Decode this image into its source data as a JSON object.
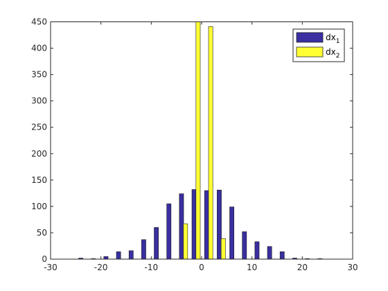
{
  "chart_data": {
    "type": "bar",
    "xlim": [
      -30,
      30
    ],
    "ylim": [
      0,
      450
    ],
    "xticks": [
      -30,
      -20,
      -10,
      0,
      10,
      20,
      30
    ],
    "yticks": [
      0,
      50,
      100,
      150,
      200,
      250,
      300,
      350,
      400,
      450
    ],
    "grid": false,
    "legend_position": "top-right",
    "series": [
      {
        "name": "dx",
        "name_subscript": "1",
        "color": "#3a2fa0",
        "x": [
          -24,
          -21.5,
          -19,
          -16.5,
          -14,
          -11.5,
          -9,
          -6.5,
          -4,
          -1.5,
          1,
          3.5,
          6,
          8.5,
          11,
          13.5,
          16,
          18.5,
          21,
          23.5
        ],
        "values": [
          2,
          1,
          5,
          14,
          16,
          37,
          60,
          105,
          124,
          132,
          130,
          131,
          99,
          52,
          33,
          24,
          14,
          2,
          1,
          1
        ]
      },
      {
        "name": "dx",
        "name_subscript": "2",
        "color": "#ffff33",
        "x": [
          -3.2,
          -0.7,
          1.8,
          4.3
        ],
        "values": [
          67,
          450,
          441,
          39
        ]
      }
    ]
  }
}
